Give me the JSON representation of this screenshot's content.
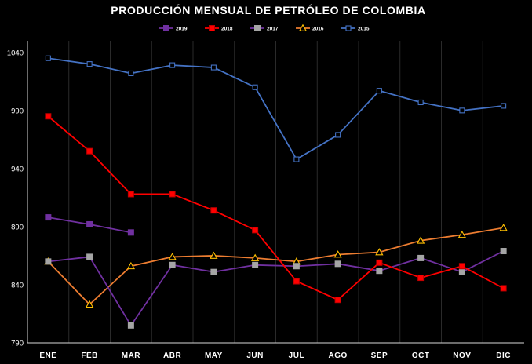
{
  "chart_data": {
    "type": "line",
    "title": "PRODUCCIÓN MENSUAL DE PETRÓLEO DE COLOMBIA",
    "xlabel": "",
    "ylabel": "",
    "categories": [
      "ENE",
      "FEB",
      "MAR",
      "ABR",
      "MAY",
      "JUN",
      "JUL",
      "AGO",
      "SEP",
      "OCT",
      "NOV",
      "DIC"
    ],
    "ylim": [
      790,
      1050
    ],
    "yticks": [
      790,
      840,
      890,
      940,
      990,
      1040
    ],
    "grid": "vertical",
    "legend_position": "top",
    "series": [
      {
        "name": "2019",
        "color": "#7030a0",
        "marker": "square-filled",
        "values": [
          898,
          892,
          885,
          null,
          null,
          null,
          null,
          null,
          null,
          null,
          null,
          null
        ]
      },
      {
        "name": "2018",
        "color": "#ff0000",
        "marker": "square-red",
        "values": [
          985,
          955,
          918,
          918,
          904,
          887,
          843,
          827,
          859,
          846,
          856,
          837
        ]
      },
      {
        "name": "2017",
        "color": "#7030a0",
        "marker": "square-gray",
        "values": [
          860,
          864,
          805,
          857,
          851,
          857,
          856,
          858,
          852,
          863,
          851,
          869
        ]
      },
      {
        "name": "2016",
        "color": "#ed7d31",
        "marker": "triangle",
        "values": [
          860,
          823,
          856,
          864,
          865,
          863,
          860,
          866,
          868,
          878,
          883,
          889
        ]
      },
      {
        "name": "2015",
        "color": "#4472c4",
        "marker": "square-open",
        "values": [
          1035,
          1030,
          1022,
          1029,
          1027,
          1010,
          948,
          969,
          1007,
          997,
          990,
          994
        ]
      }
    ]
  }
}
